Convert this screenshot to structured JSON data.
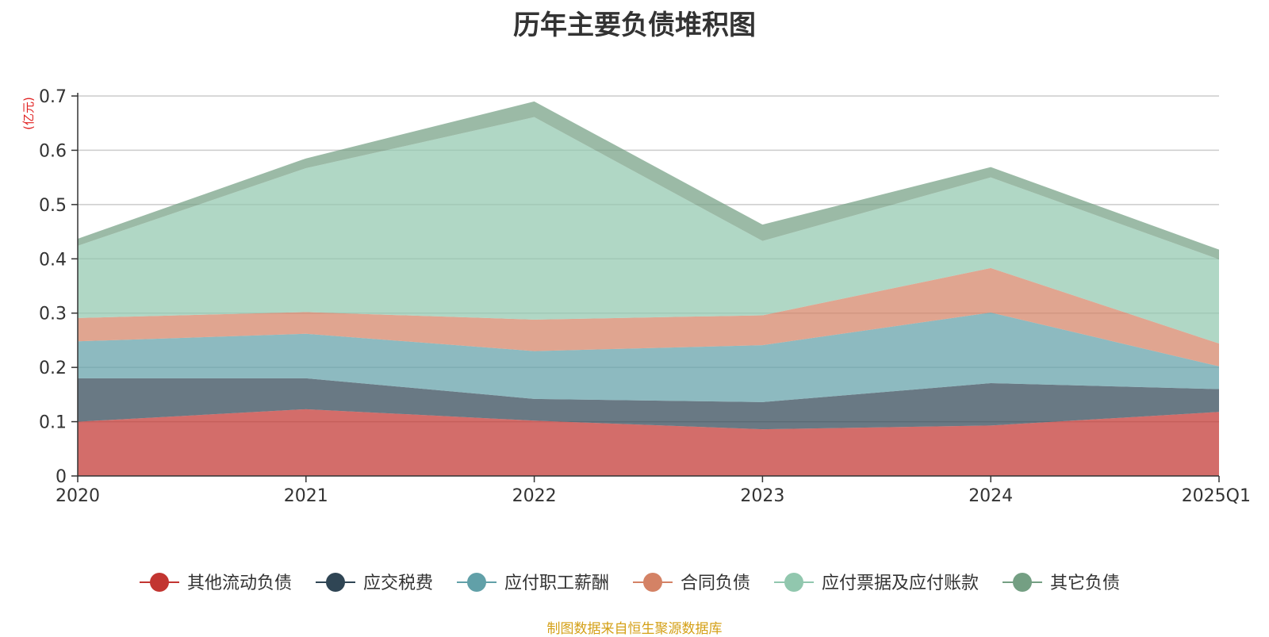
{
  "chart_data": {
    "type": "area",
    "stacked": true,
    "title": "历年主要负债堆积图",
    "y_unit_label": "(亿元)",
    "categories": [
      "2020",
      "2021",
      "2022",
      "2023",
      "2024",
      "2025Q1"
    ],
    "ylim": [
      0,
      0.7
    ],
    "y_ticks": [
      "0",
      "0.1",
      "0.2",
      "0.3",
      "0.4",
      "0.5",
      "0.6",
      "0.7"
    ],
    "grid": true,
    "legend_position": "bottom",
    "series": [
      {
        "name": "其他流动负债",
        "color": "#c23531",
        "values": [
          0.1,
          0.123,
          0.102,
          0.086,
          0.093,
          0.118
        ]
      },
      {
        "name": "应交税费",
        "color": "#2f4554",
        "values": [
          0.08,
          0.057,
          0.04,
          0.05,
          0.078,
          0.042
        ]
      },
      {
        "name": "应付职工薪酬",
        "color": "#61a0a8",
        "values": [
          0.068,
          0.082,
          0.088,
          0.105,
          0.13,
          0.042
        ]
      },
      {
        "name": "合同负债",
        "color": "#d48265",
        "values": [
          0.043,
          0.04,
          0.058,
          0.055,
          0.082,
          0.042
        ]
      },
      {
        "name": "应付票据及应付账款",
        "color": "#91c7ae",
        "values": [
          0.133,
          0.265,
          0.373,
          0.137,
          0.167,
          0.155
        ]
      },
      {
        "name": "其它负债",
        "color": "#749f83",
        "values": [
          0.013,
          0.018,
          0.029,
          0.03,
          0.019,
          0.018
        ]
      }
    ]
  },
  "source_note": "制图数据来自恒生聚源数据库"
}
